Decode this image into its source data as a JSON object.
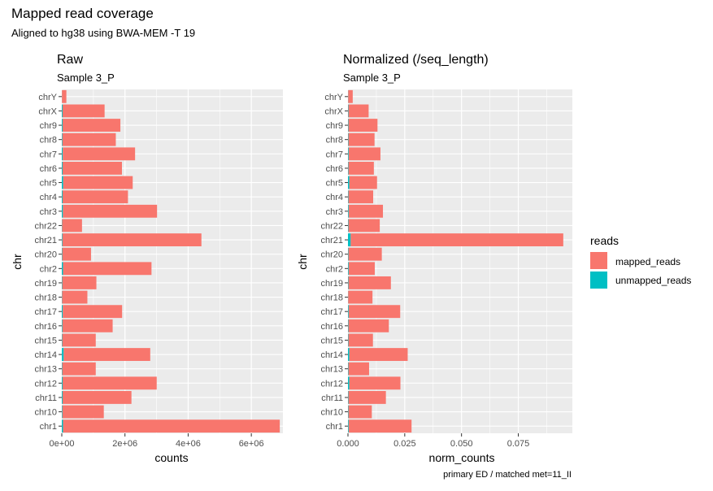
{
  "title": "Mapped read coverage",
  "subtitle": "Aligned to hg38 using BWA-MEM -T 19",
  "caption": "primary ED / matched met=11_II",
  "chart_data": [
    {
      "type": "bar",
      "orientation": "horizontal",
      "stacked": true,
      "title": "Raw",
      "subtitle": "Sample 3_P",
      "xlabel": "counts",
      "ylabel": "chr",
      "xlim": [
        0,
        7000000
      ],
      "xticks": [
        0,
        2000000,
        4000000,
        6000000
      ],
      "xtick_labels": [
        "0e+00",
        "2e+06",
        "4e+06",
        "6e+06"
      ],
      "categories": [
        "chr1",
        "chr10",
        "chr11",
        "chr12",
        "chr13",
        "chr14",
        "chr15",
        "chr16",
        "chr17",
        "chr18",
        "chr19",
        "chr2",
        "chr20",
        "chr21",
        "chr22",
        "chr3",
        "chr4",
        "chr5",
        "chr6",
        "chr7",
        "chr8",
        "chr9",
        "chrX",
        "chrY"
      ],
      "series": [
        {
          "name": "unmapped_reads",
          "values": [
            40000,
            20000,
            25000,
            25000,
            15000,
            60000,
            15000,
            20000,
            30000,
            10000,
            15000,
            40000,
            15000,
            20000,
            10000,
            35000,
            25000,
            45000,
            25000,
            30000,
            20000,
            25000,
            25000,
            5000
          ]
        },
        {
          "name": "mapped_reads",
          "values": [
            6860000,
            1310000,
            2180000,
            2980000,
            1060000,
            2740000,
            1060000,
            1590000,
            1880000,
            800000,
            1080000,
            2800000,
            910000,
            4400000,
            630000,
            2980000,
            2070000,
            2200000,
            1880000,
            2290000,
            1690000,
            1830000,
            1330000,
            140000
          ]
        }
      ],
      "grid": true
    },
    {
      "type": "bar",
      "orientation": "horizontal",
      "stacked": true,
      "title": "Normalized (/seq_length)",
      "subtitle": "Sample 3_P",
      "xlabel": "norm_counts",
      "ylabel": "chr",
      "xlim": [
        0,
        0.0988
      ],
      "xticks": [
        0,
        0.025,
        0.05,
        0.075
      ],
      "xtick_labels": [
        "0.000",
        "0.025",
        "0.050",
        "0.075"
      ],
      "categories": [
        "chr1",
        "chr10",
        "chr11",
        "chr12",
        "chr13",
        "chr14",
        "chr15",
        "chr16",
        "chr17",
        "chr18",
        "chr19",
        "chr2",
        "chr20",
        "chr21",
        "chr22",
        "chr3",
        "chr4",
        "chr5",
        "chr6",
        "chr7",
        "chr8",
        "chr9",
        "chrX",
        "chrY"
      ],
      "series": [
        {
          "name": "unmapped_reads",
          "values": [
            0.0003,
            0.0002,
            0.0002,
            0.0006,
            0.0002,
            0.0006,
            0.0002,
            0.0002,
            0.0003,
            0.0001,
            0.0002,
            0.0003,
            0.0002,
            0.0012,
            0.0002,
            0.0003,
            0.0002,
            0.0006,
            0.0002,
            0.0003,
            0.0002,
            0.0002,
            0.0002,
            0.0001
          ]
        },
        {
          "name": "mapped_reads",
          "values": [
            0.0277,
            0.0103,
            0.0165,
            0.0225,
            0.0091,
            0.0257,
            0.0108,
            0.0178,
            0.0227,
            0.0107,
            0.0187,
            0.0115,
            0.0147,
            0.0936,
            0.0138,
            0.0151,
            0.0109,
            0.0122,
            0.0112,
            0.014,
            0.0115,
            0.0128,
            0.0089,
            0.002
          ]
        }
      ],
      "grid": true
    }
  ],
  "legend": {
    "title": "reads",
    "position": "right",
    "items": [
      {
        "label": "mapped_reads",
        "color": "#F8766D"
      },
      {
        "label": "unmapped_reads",
        "color": "#00BFC4"
      }
    ]
  },
  "colors": {
    "panel_background": "#EBEBEB",
    "grid": "#FFFFFF",
    "mapped_reads": "#F8766D",
    "unmapped_reads": "#00BFC4",
    "tick_text": "#4D4D4D"
  }
}
